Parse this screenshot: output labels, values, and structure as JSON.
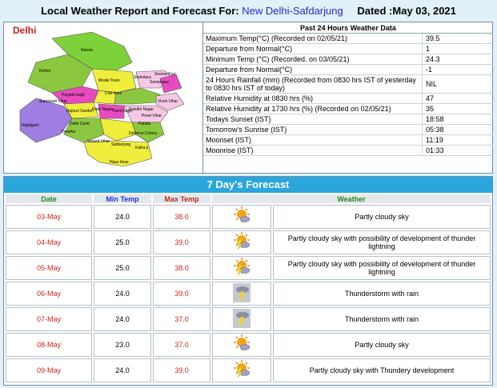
{
  "header": {
    "prefix": "Local Weather Report and Forecast For:",
    "location": "New Delhi-Safdarjung",
    "date_label": "Dated :May 03, 2021"
  },
  "map": {
    "region": "Delhi",
    "districts": [
      "Narela",
      "Rohini",
      "Model Town",
      "Shahdara",
      "Seelampur",
      "Seema Puri",
      "Punjabi bagh",
      "Saraswati Vihar",
      "Civil lines",
      "Karol bagh",
      "Rajouri Garden",
      "Patel Nagar",
      "Delhi Cantt",
      "Gandhi Nagar",
      "Preet Vihar",
      "Vivek Vihar",
      "Najafgarh",
      "Dwarka",
      "Vasant Vihar",
      "Safdarjung",
      "Defence Colony",
      "Kalka ji",
      "Hauz khas",
      "Patiala"
    ]
  },
  "past24": {
    "title": "Past 24 Hours Weather Data",
    "rows": [
      {
        "label": "Maximum Temp(°C) (Recorded on 02/05/21)",
        "value": "39.5"
      },
      {
        "label": "Departure from Normal(°C)",
        "value": "1"
      },
      {
        "label": "Minimum Temp (°C) (Recorded. on 03/05/21)",
        "value": "24.3"
      },
      {
        "label": "Departure from Normal(°C)",
        "value": "-1"
      },
      {
        "label": "24 Hours Rainfall (mm) (Recorded from 0830 hrs IST of yesterday to 0830 hrs IST of today)",
        "value": "NIL"
      },
      {
        "label": "Relative Humidity at 0830 hrs (%)",
        "value": "47"
      },
      {
        "label": "Relative Humidity at 1730 hrs (%) (Recorded on 02/05/21)",
        "value": "35"
      },
      {
        "label": "Todays Sunset (IST)",
        "value": "18:58"
      },
      {
        "label": "Tomorrow's Sunrise (IST)",
        "value": "05:38"
      },
      {
        "label": "Moonset (IST)",
        "value": "11:19"
      },
      {
        "label": "Moonrise (IST)",
        "value": "01:33"
      }
    ]
  },
  "forecast": {
    "title": "7 Day's Forecast",
    "headers": {
      "date": "Date",
      "min": "Min Temp",
      "max": "Max Temp",
      "weather": "Weather"
    },
    "days": [
      {
        "date": "03-May",
        "min": "24.0",
        "max": "38.0",
        "icon": "partly-cloudy-icon",
        "text": "Partly cloudy sky"
      },
      {
        "date": "04-May",
        "min": "25.0",
        "max": "39.0",
        "icon": "partly-cloudy-thunder-icon",
        "text": "Partly cloudy sky with possibility of development of thunder lightning"
      },
      {
        "date": "05-May",
        "min": "25.0",
        "max": "38.0",
        "icon": "partly-cloudy-thunder-icon",
        "text": "Partly cloudy sky with possibility of development of thunder lightning"
      },
      {
        "date": "06-May",
        "min": "24.0",
        "max": "39.0",
        "icon": "thunderstorm-rain-icon",
        "text": "Thunderstorm with rain"
      },
      {
        "date": "07-May",
        "min": "24.0",
        "max": "37.0",
        "icon": "thunderstorm-rain-icon",
        "text": "Thunderstorm with rain"
      },
      {
        "date": "08-May",
        "min": "23.0",
        "max": "37.0",
        "icon": "partly-cloudy-icon",
        "text": "Partly cloudy sky"
      },
      {
        "date": "09-May",
        "min": "24.0",
        "max": "39.0",
        "icon": "partly-cloudy-thunder-icon",
        "text": "Partly cloudy sky with Thundery development"
      }
    ]
  }
}
